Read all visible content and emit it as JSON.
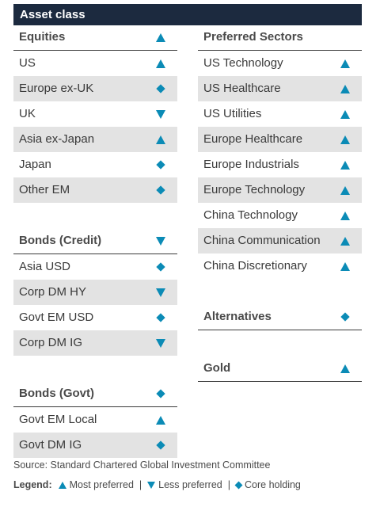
{
  "title": "Asset class",
  "left": {
    "equities": {
      "header": {
        "label": "Equities",
        "icon": "triangle-up-icon"
      },
      "rows": [
        {
          "label": "US",
          "icon": "triangle-up-icon"
        },
        {
          "label": "Europe ex-UK",
          "icon": "diamond-icon"
        },
        {
          "label": "UK",
          "icon": "triangle-down-icon"
        },
        {
          "label": "Asia ex-Japan",
          "icon": "triangle-up-icon"
        },
        {
          "label": "Japan",
          "icon": "diamond-icon"
        },
        {
          "label": "Other EM",
          "icon": "diamond-icon"
        }
      ]
    },
    "bonds_credit": {
      "header": {
        "label": "Bonds (Credit)",
        "icon": "triangle-down-icon"
      },
      "rows": [
        {
          "label": "Asia USD",
          "icon": "diamond-icon"
        },
        {
          "label": "Corp DM HY",
          "icon": "triangle-down-icon"
        },
        {
          "label": "Govt EM USD",
          "icon": "diamond-icon"
        },
        {
          "label": "Corp DM IG",
          "icon": "triangle-down-icon"
        }
      ]
    },
    "bonds_govt": {
      "header": {
        "label": "Bonds (Govt)",
        "icon": "diamond-icon"
      },
      "rows": [
        {
          "label": "Govt EM Local",
          "icon": "triangle-up-icon"
        },
        {
          "label": "Govt DM IG",
          "icon": "diamond-icon"
        }
      ]
    }
  },
  "right": {
    "preferred": {
      "header": {
        "label": "Preferred Sectors"
      },
      "rows": [
        {
          "label": "US Technology",
          "icon": "triangle-up-icon"
        },
        {
          "label": "US Healthcare",
          "icon": "triangle-up-icon"
        },
        {
          "label": "US Utilities",
          "icon": "triangle-up-icon"
        },
        {
          "label": "Europe Healthcare",
          "icon": "triangle-up-icon"
        },
        {
          "label": "Europe Industrials",
          "icon": "triangle-up-icon"
        },
        {
          "label": "Europe Technology",
          "icon": "triangle-up-icon"
        },
        {
          "label": "China Technology",
          "icon": "triangle-up-icon"
        },
        {
          "label": "China Communication",
          "icon": "triangle-up-icon"
        },
        {
          "label": "China Discretionary",
          "icon": "triangle-up-icon"
        }
      ]
    },
    "alternatives": {
      "header": {
        "label": "Alternatives",
        "icon": "diamond-icon"
      }
    },
    "gold": {
      "header": {
        "label": "Gold",
        "icon": "triangle-up-icon"
      }
    }
  },
  "source": "Source: Standard Chartered Global Investment Committee",
  "legend": {
    "label": "Legend:",
    "most": "Most preferred",
    "less": "Less preferred",
    "core": "Core holding",
    "separator": "|"
  },
  "colors": {
    "accent": "#0b8bb6",
    "title_bg": "#1c2a3f",
    "shade": "#e3e3e3"
  }
}
